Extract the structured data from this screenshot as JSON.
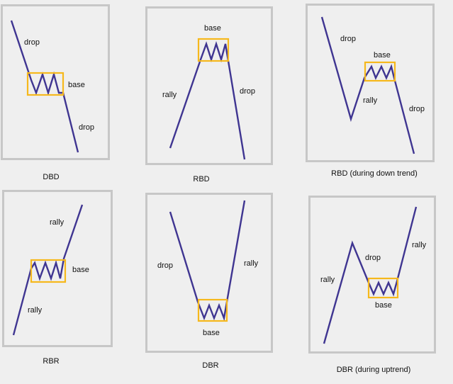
{
  "colors": {
    "line": "#3f3591",
    "box": "#f6b81c",
    "border": "#c7c7c7",
    "background": "#efefef"
  },
  "panels": [
    {
      "caption": "DBD",
      "labels": {
        "first": "drop",
        "base": "base",
        "second": "drop"
      }
    },
    {
      "caption": "RBD",
      "labels": {
        "first": "rally",
        "base": "base",
        "second": "drop"
      }
    },
    {
      "caption": "RBD (during down trend)",
      "labels": {
        "pre": "drop",
        "first": "rally",
        "base": "base",
        "second": "drop"
      }
    },
    {
      "caption": "RBR",
      "labels": {
        "first": "rally",
        "base": "base",
        "second": "rally"
      }
    },
    {
      "caption": "DBR",
      "labels": {
        "first": "drop",
        "base": "base",
        "second": "rally"
      }
    },
    {
      "caption": "DBR (during uptrend)",
      "labels": {
        "pre": "rally",
        "first": "drop",
        "base": "base",
        "second": "rally"
      }
    }
  ]
}
